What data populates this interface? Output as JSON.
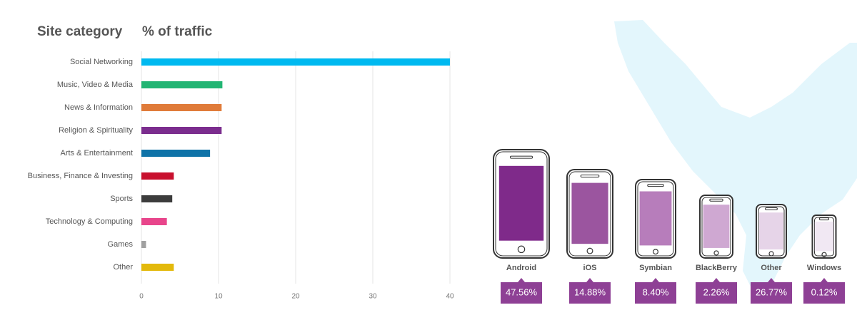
{
  "chart_data": [
    {
      "type": "bar",
      "title": "Site category",
      "subtitle": "% of traffic",
      "categories": [
        "Social Networking",
        "Music, Video & Media",
        "News & Information",
        "Religion & Spirituality",
        "Arts & Entertainment",
        "Business, Finance & Investing",
        "Sports",
        "Technology & Computing",
        "Games",
        "Other"
      ],
      "values": [
        40,
        10.5,
        10.4,
        10.4,
        8.9,
        4.2,
        4.0,
        3.3,
        0.6,
        4.2
      ],
      "colors": [
        "#00b9f0",
        "#22b573",
        "#e07b39",
        "#7b2d8e",
        "#0f73a8",
        "#c8102e",
        "#3c3c3c",
        "#e8458b",
        "#a0a0a0",
        "#e3b90b"
      ],
      "xlim": [
        0,
        40
      ],
      "xticks": [
        0,
        10,
        20,
        30,
        40
      ],
      "grid": true
    },
    {
      "type": "pictogram",
      "categories": [
        "Android",
        "iOS",
        "Symbian",
        "BlackBerry",
        "Other",
        "Windows"
      ],
      "values": [
        47.56,
        14.88,
        8.4,
        2.26,
        26.77,
        0.12
      ],
      "value_labels": [
        "47.56%",
        "14.88%",
        "8.40%",
        "2.26%",
        "26.77%",
        "0.12%"
      ],
      "colors": [
        "#7f2a8a",
        "#9b559f",
        "#b77dbb",
        "#cfa8d2",
        "#e6d4e8",
        "#f1e8f3"
      ],
      "label_color": "#8e4095"
    }
  ]
}
